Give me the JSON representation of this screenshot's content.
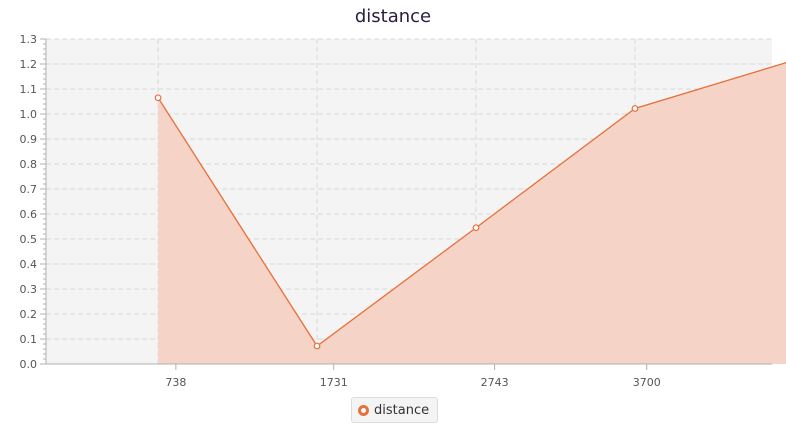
{
  "colors": {
    "plot_background": "#f4f4f4",
    "grid": "#d9d9d9",
    "axis": "#b0b0b0",
    "series_line": "#e8703a",
    "series_fill": "#f5d3c7"
  },
  "chart_data": {
    "type": "area",
    "title": "distance",
    "xlabel": "",
    "ylabel": "",
    "x_ticks": [
      738,
      1731,
      2743,
      3700
    ],
    "xlim": [
      -79,
      4488
    ],
    "ylim": [
      0,
      1.3
    ],
    "y_ticks": [
      "0.0",
      "0.1",
      "0.2",
      "0.3",
      "0.4",
      "0.5",
      "0.6",
      "0.7",
      "0.8",
      "0.9",
      "1.0",
      "1.1",
      "1.2",
      "1.3"
    ],
    "grid": true,
    "legend": "bottom-center",
    "series": [
      {
        "name": "distance",
        "points": [
          {
            "x": 626,
            "y": 1.065
          },
          {
            "x": 1626,
            "y": 0.072
          },
          {
            "x": 2626,
            "y": 0.545
          },
          {
            "x": 3626,
            "y": 1.022
          },
          {
            "x": 4626,
            "y": 1.215
          }
        ]
      }
    ]
  }
}
